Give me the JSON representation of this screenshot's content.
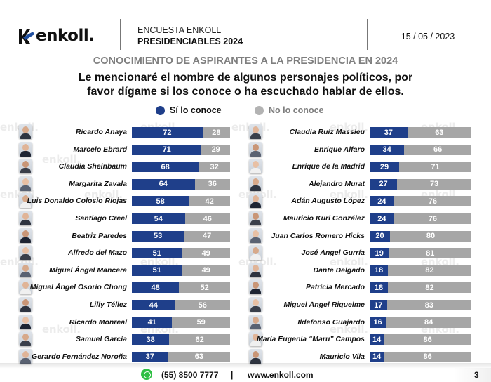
{
  "header": {
    "brand": "enkoll.",
    "survey_label": "ENCUESTA ENKOLL",
    "survey_title": "PRESIDENCIABLES 2024",
    "date": "15 / 05 / 2023"
  },
  "colors": {
    "yes": "#1f3f8a",
    "no": "#a6a6a6",
    "title_gray": "#7f7f7f",
    "whatsapp": "#2fbf44"
  },
  "watermark_text": "enkoll.",
  "footer": {
    "phone": "(55) 8500 7777",
    "separator": "|",
    "website": "www.enkoll.com",
    "page_number": "3"
  },
  "chart_data": {
    "type": "bar",
    "orientation": "horizontal-stacked-100",
    "title": "CONOCIMIENTO DE ASPIRANTES A LA PRESIDENCIA EN 2024",
    "subtitle": "Le mencionaré el nombre de algunos personajes políticos, por favor dígame si los conoce o ha escuchado hablar de ellos.",
    "legend": [
      {
        "name": "Sí lo conoce",
        "color": "#1f3f8a"
      },
      {
        "name": "No lo conoce",
        "color": "#a6a6a6"
      }
    ],
    "legend_position": "top-center",
    "xlim": [
      0,
      100
    ],
    "unit": "%",
    "panels": [
      {
        "categories": [
          "Ricardo Anaya",
          "Marcelo Ebrard",
          "Claudia Sheinbaum",
          "Margarita Zavala",
          "Luis Donaldo Colosio Riojas",
          "Santiago Creel",
          "Beatriz Paredes",
          "Alfredo del Mazo",
          "Miguel Ángel Mancera",
          "Miguel Ángel Osorio Chong",
          "Lilly Téllez",
          "Ricardo Monreal",
          "Samuel García",
          "Gerardo Fernández Noroña"
        ],
        "series": [
          {
            "name": "Sí lo conoce",
            "values": [
              72,
              71,
              68,
              64,
              58,
              54,
              53,
              51,
              51,
              48,
              44,
              41,
              38,
              37
            ]
          },
          {
            "name": "No lo conoce",
            "values": [
              28,
              29,
              32,
              36,
              42,
              46,
              47,
              49,
              49,
              52,
              56,
              59,
              62,
              63
            ]
          }
        ]
      },
      {
        "categories": [
          "Claudia Ruiz Massieu",
          "Enrique Alfaro",
          "Enrique de la Madrid",
          "Alejandro Murat",
          "Adán Augusto López",
          "Mauricio Kuri González",
          "Juan Carlos Romero Hicks",
          "José Ángel Gurría",
          "Dante Delgado",
          "Patricia Mercado",
          "Miguel Ángel Riquelme",
          "Ildefonso Guajardo",
          "María Eugenia “Maru” Campos",
          "Mauricio Vila"
        ],
        "series": [
          {
            "name": "Sí lo conoce",
            "values": [
              37,
              34,
              29,
              27,
              24,
              24,
              20,
              19,
              18,
              18,
              17,
              16,
              14,
              14
            ]
          },
          {
            "name": "No lo conoce",
            "values": [
              63,
              66,
              71,
              73,
              76,
              76,
              80,
              81,
              82,
              82,
              83,
              84,
              86,
              86
            ]
          }
        ]
      }
    ]
  }
}
